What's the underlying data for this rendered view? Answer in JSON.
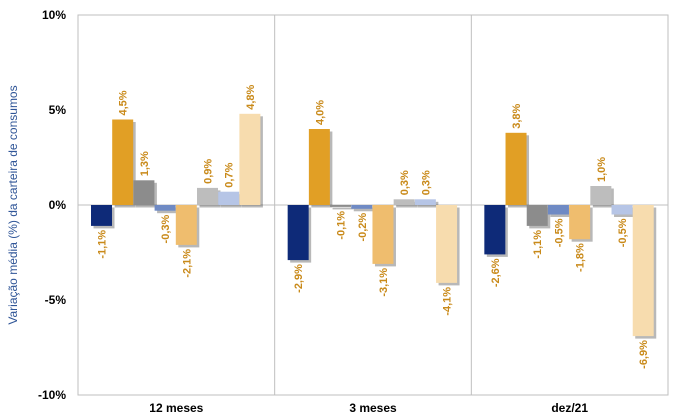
{
  "chart_data": {
    "type": "bar",
    "categories": [
      "12 meses",
      "3 meses",
      "dez/21"
    ],
    "ylabel": "Variação média (%) da carteira de consumos",
    "ylim": [
      -10,
      10
    ],
    "yticks": [
      {
        "value": 10,
        "label": "10%"
      },
      {
        "value": 5,
        "label": "5%"
      },
      {
        "value": 0,
        "label": "0%"
      },
      {
        "value": -5,
        "label": "-5%"
      },
      {
        "value": -10,
        "label": "-10%"
      }
    ],
    "grid": "vertical separators between categories",
    "legend": "none",
    "series": [
      {
        "color": "#0e2a78",
        "values": [
          -1.1,
          -2.9,
          -2.6
        ],
        "labels": [
          "-1,1%",
          "-2,9%",
          "-2,6%"
        ]
      },
      {
        "color": "#e19f25",
        "values": [
          4.5,
          4.0,
          3.8
        ],
        "labels": [
          "4,5%",
          "4,0%",
          "3,8%"
        ]
      },
      {
        "color": "#8c8c8c",
        "values": [
          1.3,
          -0.1,
          -1.1
        ],
        "labels": [
          "1,3%",
          "-0,1%",
          "-1,1%"
        ]
      },
      {
        "color": "#6f8ac4",
        "values": [
          -0.3,
          -0.2,
          -0.5
        ],
        "labels": [
          "-0,3%",
          "-0,2%",
          "-0,5%"
        ]
      },
      {
        "color": "#efbd6e",
        "values": [
          -2.1,
          -3.1,
          -1.8
        ],
        "labels": [
          "-2,1%",
          "-3,1%",
          "-1,8%"
        ]
      },
      {
        "color": "#bdbdbd",
        "values": [
          0.9,
          0.3,
          1.0
        ],
        "labels": [
          "0,9%",
          "0,3%",
          "1,0%"
        ]
      },
      {
        "color": "#b6c5e6",
        "values": [
          0.7,
          0.3,
          -0.5
        ],
        "labels": [
          "0,7%",
          "0,3%",
          "-0,5%"
        ]
      },
      {
        "color": "#f7dcae",
        "values": [
          4.8,
          -4.1,
          -6.9
        ],
        "labels": [
          "4,8%",
          "-4,1%",
          "-6,9%"
        ]
      }
    ],
    "label_color": "#c98a1a",
    "axis_label_color": "#2f5597"
  }
}
